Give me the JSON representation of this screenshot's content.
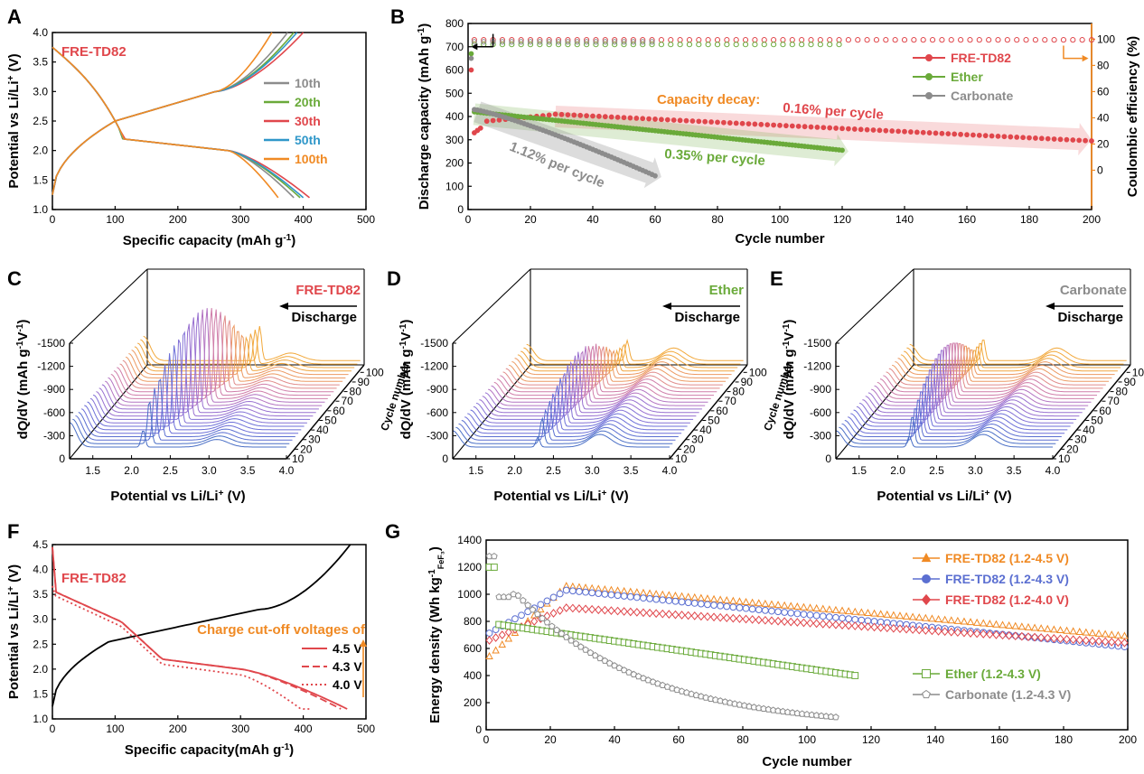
{
  "chart_data": [
    {
      "panel": "A",
      "type": "line",
      "label_text": "FRE-TD82",
      "xlabel": "Specific capacity (mAh g",
      "xlabel_sup": "-1",
      "xlabel_end": ")",
      "ylabel": "Potential vs Li/Li",
      "ylabel_sup": "+",
      "ylabel_end": " (V)",
      "xlim": [
        0,
        500
      ],
      "ylim": [
        1.0,
        4.0
      ],
      "xticks": [
        0,
        100,
        200,
        300,
        400,
        500
      ],
      "yticks": [
        1.0,
        1.5,
        2.0,
        2.5,
        3.0,
        3.5,
        4.0
      ],
      "series": [
        {
          "name": "10th",
          "color": "#8c8c8c",
          "discharge_end": 385,
          "charge_end": 375
        },
        {
          "name": "20th",
          "color": "#6aaa3a",
          "discharge_end": 395,
          "charge_end": 385
        },
        {
          "name": "30th",
          "color": "#e0474c",
          "discharge_end": 410,
          "charge_end": 400
        },
        {
          "name": "50th",
          "color": "#2f97c9",
          "discharge_end": 400,
          "charge_end": 390
        },
        {
          "name": "100th",
          "color": "#f08a24",
          "discharge_end": 360,
          "charge_end": 350
        }
      ]
    },
    {
      "panel": "B",
      "type": "scatter",
      "xlabel": "Cycle number",
      "ylabel": "Discharge capacity (mAh g",
      "ylabel_sup": "-1",
      "ylabel_end": ")",
      "y2label": "Coulombic efficiency (%)",
      "xlim": [
        0,
        200
      ],
      "ylim": [
        0,
        800
      ],
      "y2lim": [
        0,
        100
      ],
      "xticks": [
        0,
        20,
        40,
        60,
        80,
        100,
        120,
        140,
        160,
        180,
        200
      ],
      "yticks": [
        0,
        100,
        200,
        300,
        400,
        500,
        600,
        700,
        800
      ],
      "y2ticks": [
        0,
        20,
        40,
        60,
        80,
        100
      ],
      "series": [
        {
          "name": "FRE-TD82",
          "color": "#e0474c",
          "cycles": 200,
          "start": 330,
          "peak": 410,
          "end": 295
        },
        {
          "name": "Ether",
          "color": "#6aaa3a",
          "cycles": 120,
          "start": 420,
          "end": 255
        },
        {
          "name": "Carbonate",
          "color": "#8c8c8c",
          "cycles": 60,
          "start": 430,
          "end": 145
        }
      ],
      "annotations": {
        "decay_label": "Capacity decay:",
        "fre": "0.16% per cycle",
        "ether": "0.35% per cycle",
        "carbonate": "1.12% per cycle"
      }
    },
    {
      "panel": "C",
      "type": "line",
      "label_text": "FRE-TD82",
      "label_color": "#e0474c",
      "direction": "Discharge",
      "xlabel": "Potential vs Li/Li",
      "xlabel_sup": "+",
      "xlabel_end": " (V)",
      "ylabel": "dQ/dV (mAh g",
      "ylabel_sup": "-1",
      "ylabel_mid": "V",
      "ylabel_sup2": "-1",
      "ylabel_end": ")",
      "zlabel": "Cycle number",
      "xticks": [
        1.5,
        2.0,
        2.5,
        3.0,
        3.5,
        4.0
      ],
      "yticks": [
        0,
        -300,
        -600,
        -900,
        -1200,
        -1500
      ],
      "zticks": [
        10,
        20,
        30,
        40,
        50,
        60,
        70,
        80,
        90,
        100
      ],
      "peak": 2.15,
      "peak_shift": 0.55,
      "peak_height": 0.85
    },
    {
      "panel": "D",
      "type": "line",
      "label_text": "Ether",
      "label_color": "#6aaa3a",
      "direction": "Discharge",
      "xlabel": "Potential vs Li/Li",
      "xlabel_sup": "+",
      "xlabel_end": " (V)",
      "ylabel": "dQ/dV (mAh g",
      "ylabel_sup": "-1",
      "ylabel_mid": "V",
      "ylabel_sup2": "-1",
      "ylabel_end": ")",
      "zlabel": "Cycle number",
      "xticks": [
        1.5,
        2.0,
        2.5,
        3.0,
        3.5,
        4.0
      ],
      "yticks": [
        0,
        -300,
        -600,
        -900,
        -1200,
        -1500
      ],
      "zticks": [
        10,
        20,
        30,
        40,
        50,
        60,
        70,
        80,
        90,
        100
      ],
      "peak": 2.3,
      "peak_shift": 0.2,
      "peak_height": 0.5
    },
    {
      "panel": "E",
      "type": "line",
      "label_text": "Carbonate",
      "label_color": "#8c8c8c",
      "direction": "Discharge",
      "xlabel": "Potential vs Li/Li",
      "xlabel_sup": "+",
      "xlabel_end": " (V)",
      "ylabel": "dQ/dV (mAh g",
      "ylabel_sup": "-1",
      "ylabel_mid": "V",
      "ylabel_sup2": "-1",
      "ylabel_end": ")",
      "zlabel": "Cycle number",
      "xticks": [
        1.5,
        2.0,
        2.5,
        3.0,
        3.5,
        4.0
      ],
      "yticks": [
        0,
        -300,
        -600,
        -900,
        -1200,
        -1500
      ],
      "zticks": [
        10,
        20,
        30,
        40,
        50,
        60,
        70,
        80,
        90,
        100
      ],
      "peak": 2.15,
      "peak_shift": 0.0,
      "peak_height": 0.55
    },
    {
      "panel": "F",
      "type": "line",
      "label_text": "FRE-TD82",
      "xlabel": "Specific capacity(mAh g",
      "xlabel_sup": "-1",
      "xlabel_end": ")",
      "ylabel": "Potential vs Li/Li",
      "ylabel_sup": "+",
      "ylabel_end": " (V)",
      "xlim": [
        0,
        500
      ],
      "ylim": [
        1.0,
        4.5
      ],
      "xticks": [
        0,
        100,
        200,
        300,
        400,
        500
      ],
      "yticks": [
        1.0,
        1.5,
        2.0,
        2.5,
        3.0,
        3.5,
        4.0,
        4.5
      ],
      "legend_title": "Charge cut-off voltages of",
      "series": [
        {
          "name": "4.5 V",
          "color": "#e0474c",
          "dash": "",
          "discharge_end": 470
        },
        {
          "name": "4.3 V",
          "color": "#e0474c",
          "dash": "8,4",
          "discharge_end": 460
        },
        {
          "name": "4.0 V",
          "color": "#e0474c",
          "dash": "2,3",
          "discharge_end": 410
        }
      ],
      "charge_end": 475
    },
    {
      "panel": "G",
      "type": "scatter",
      "xlabel": "Cycle number",
      "ylabel": "Energy density (Wh kg",
      "ylabel_sup": "-1",
      "ylabel_sub": "FeF₃",
      "ylabel_end": ")",
      "xlim": [
        0,
        200
      ],
      "ylim": [
        0,
        1400
      ],
      "xticks": [
        0,
        20,
        40,
        60,
        80,
        100,
        120,
        140,
        160,
        180,
        200
      ],
      "yticks": [
        0,
        200,
        400,
        600,
        800,
        1000,
        1200,
        1400
      ],
      "series": [
        {
          "name": "FRE-TD82 (1.2-4.5 V)",
          "color": "#f08a24",
          "marker": "triangle",
          "cycles": 200,
          "peak": 1060,
          "end": 690
        },
        {
          "name": "FRE-TD82 (1.2-4.3 V)",
          "color": "#5b6fd1",
          "marker": "circle",
          "cycles": 200,
          "peak": 1030,
          "end": 610
        },
        {
          "name": "FRE-TD82 (1.2-4.0 V)",
          "color": "#e0474c",
          "marker": "diamond",
          "cycles": 200,
          "peak": 900,
          "end": 640
        },
        {
          "name": "Ether (1.2-4.3 V)",
          "color": "#6aaa3a",
          "marker": "square",
          "cycles": 115,
          "peak": 760,
          "end": 400
        },
        {
          "name": "Carbonate (1.2-4.3 V)",
          "color": "#8c8c8c",
          "marker": "pentagon",
          "cycles": 110,
          "peak": 1030,
          "end": 50
        }
      ]
    }
  ]
}
